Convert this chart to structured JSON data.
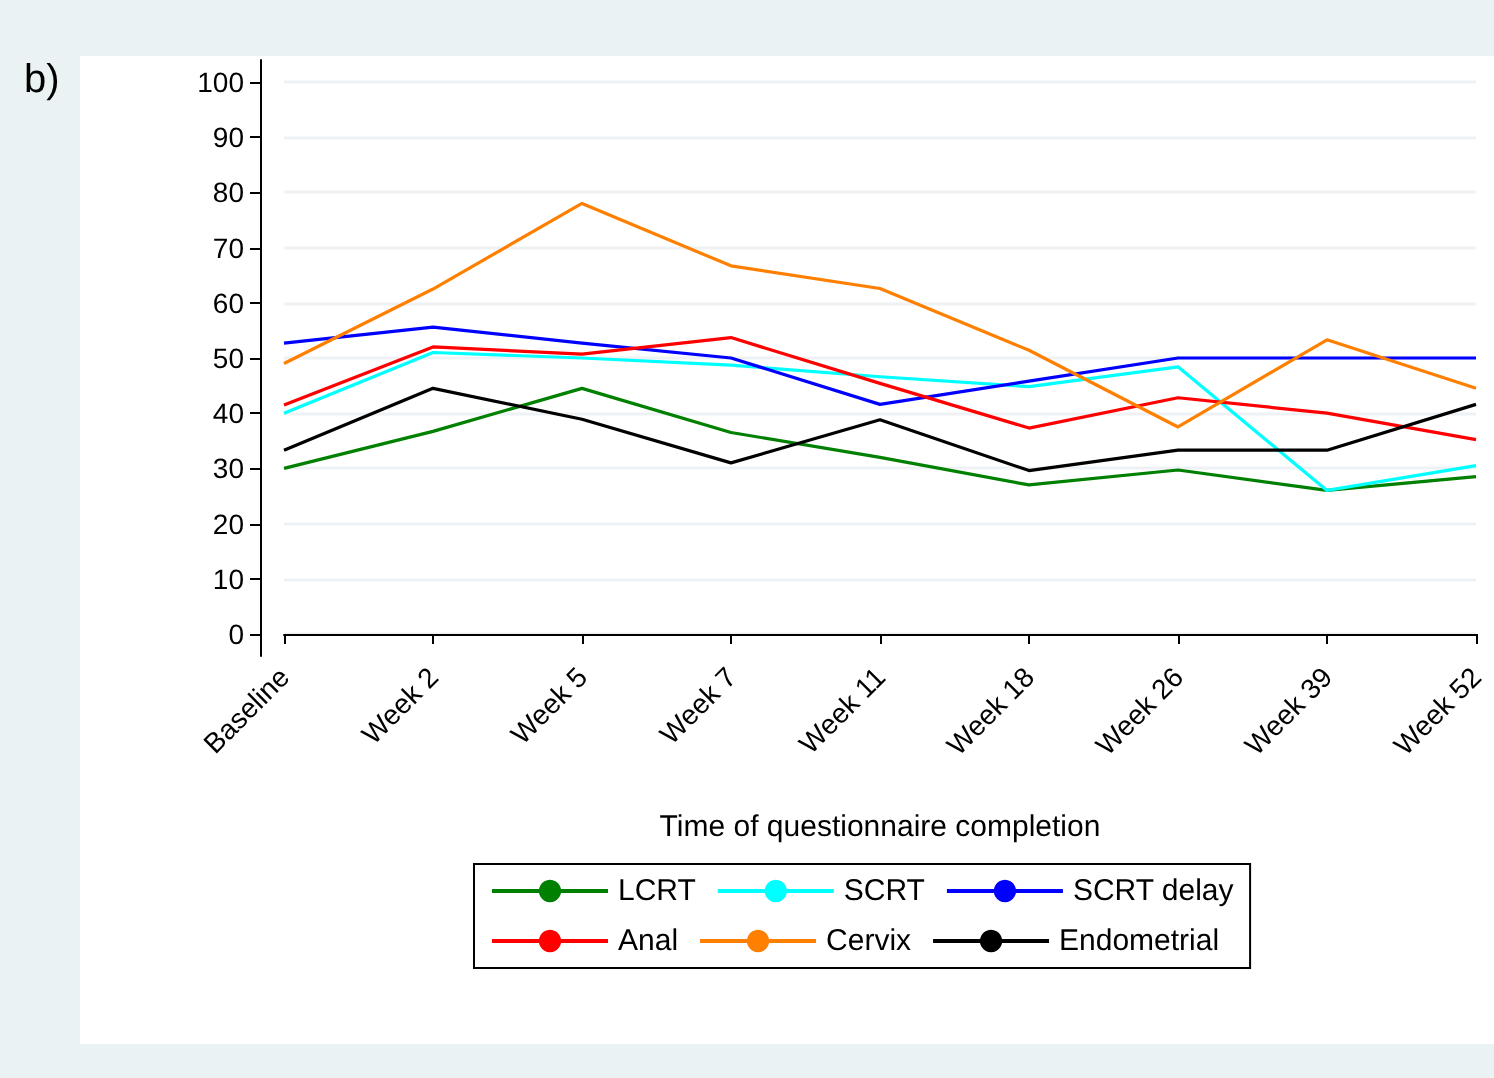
{
  "chart_data": {
    "type": "line",
    "xlabel": "Time of questionnaire completion",
    "annotations": [
      "b)"
    ],
    "categories": [
      "Baseline",
      "Week 2",
      "Week 5",
      "Week 7",
      "Week 11",
      "Week 18",
      "Week 26",
      "Week 39",
      "Week 52"
    ],
    "series": [
      {
        "name": "LCRT",
        "color": "#008000",
        "values": [
          30,
          36.7,
          44.5,
          36.5,
          32,
          27,
          29.7,
          26,
          28.5
        ]
      },
      {
        "name": "SCRT",
        "color": "#00ffff",
        "values": [
          40,
          51,
          50,
          48.7,
          46.6,
          44.8,
          48.4,
          26,
          30.5
        ]
      },
      {
        "name": "SCRT delay",
        "color": "#0000ff",
        "values": [
          52.7,
          55.6,
          52.7,
          50,
          41.6,
          45.8,
          50,
          50,
          50
        ]
      },
      {
        "name": "Anal",
        "color": "#ff0000",
        "values": [
          41.5,
          52,
          50.7,
          53.7,
          45.4,
          37.3,
          42.8,
          40,
          35.2
        ]
      },
      {
        "name": "Cervix",
        "color": "#ff8000",
        "values": [
          49,
          62.5,
          78,
          66.7,
          62.6,
          51.4,
          37.5,
          53.3,
          44.5
        ]
      },
      {
        "name": "Endometrial",
        "color": "#000000",
        "values": [
          33.3,
          44.5,
          38.9,
          31,
          38.8,
          29.6,
          33.3,
          33.3,
          41.6
        ]
      }
    ],
    "ylim": [
      -4,
      104
    ],
    "yticks": [
      0,
      10,
      20,
      30,
      40,
      50,
      60,
      70,
      80,
      90,
      100
    ],
    "grid": "y",
    "legend": "bottom",
    "marker": "none",
    "line_style": "solid"
  }
}
